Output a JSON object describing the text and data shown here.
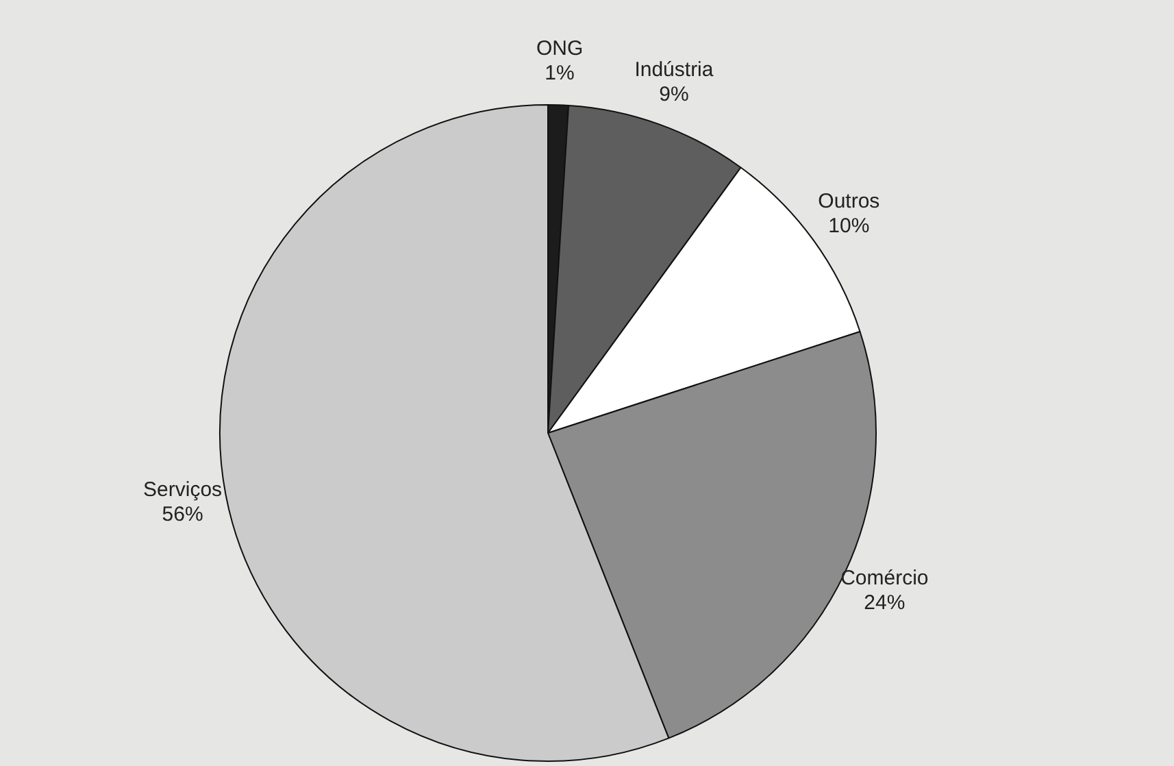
{
  "chart_data": {
    "type": "pie",
    "categories": [
      "ONG",
      "Indústria",
      "Outros",
      "Comércio",
      "Serviços"
    ],
    "values": [
      1,
      9,
      10,
      24,
      56
    ],
    "value_labels": [
      "1%",
      "9%",
      "10%",
      "24%",
      "56%"
    ],
    "colors": [
      "#1c1c1c",
      "#5e5e5e",
      "#ffffff",
      "#8c8c8c",
      "#cbcbcb"
    ],
    "legend": false
  }
}
